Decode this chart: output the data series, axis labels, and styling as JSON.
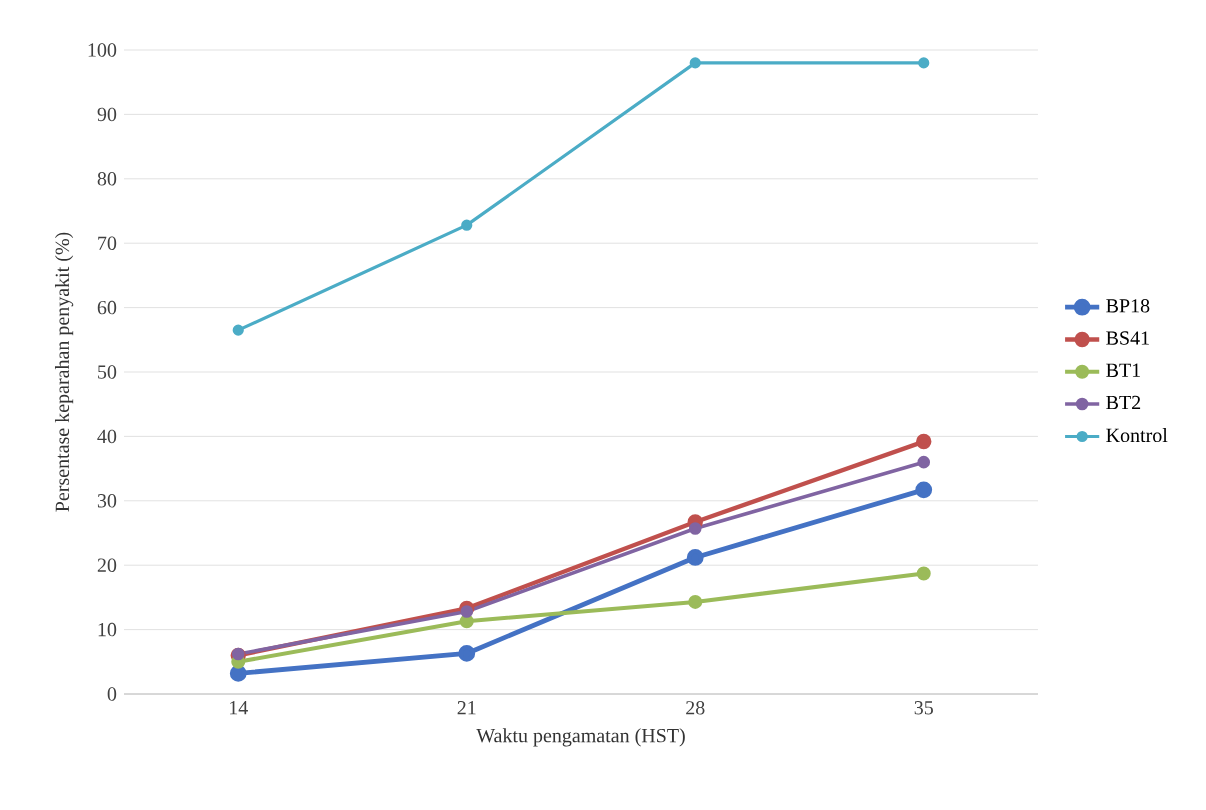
{
  "chart_data": {
    "type": "line",
    "xlabel": "Waktu pengamatan (HST)",
    "ylabel": "Persentase keparahan penyakit (%)",
    "categories": [
      "14",
      "21",
      "28",
      "35"
    ],
    "series": [
      {
        "name": "BP18",
        "color": "#4472c4",
        "values": [
          3.2,
          6.3,
          21.2,
          31.7
        ]
      },
      {
        "name": "BS41",
        "color": "#c0504d",
        "values": [
          6.0,
          13.3,
          26.7,
          39.2
        ]
      },
      {
        "name": "BT1",
        "color": "#9bbb59",
        "values": [
          5.0,
          11.3,
          14.3,
          18.7
        ]
      },
      {
        "name": "BT2",
        "color": "#8064a2",
        "values": [
          6.2,
          12.8,
          25.7,
          36.0
        ]
      },
      {
        "name": "Kontrol",
        "color": "#4bacc6",
        "values": [
          56.5,
          72.8,
          98.0,
          98.0
        ]
      }
    ],
    "ylim": [
      0,
      100
    ],
    "yticks": [
      0,
      10,
      20,
      30,
      40,
      50,
      60,
      70,
      80,
      90,
      100
    ],
    "grid": "y",
    "legend": "right",
    "marker": "circle",
    "line_style": "solid"
  }
}
